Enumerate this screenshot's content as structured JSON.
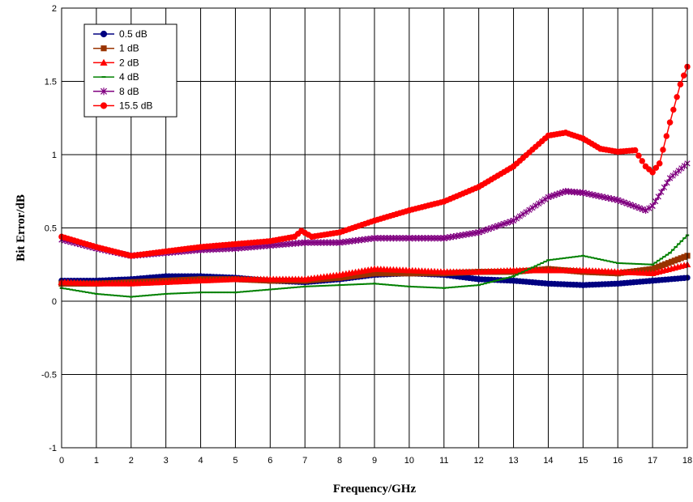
{
  "chart_data": {
    "type": "line",
    "title": "",
    "xlabel": "Frequency/GHz",
    "ylabel": "Bit Error/dB",
    "xlim": [
      0,
      18
    ],
    "ylim": [
      -1,
      2
    ],
    "xticks": [
      0,
      1,
      2,
      3,
      4,
      5,
      6,
      7,
      8,
      9,
      10,
      11,
      12,
      13,
      14,
      15,
      16,
      17,
      18
    ],
    "yticks": [
      -1,
      -0.5,
      0,
      0.5,
      1,
      1.5,
      2
    ],
    "ytick_labels": [
      "-1",
      "-0.5",
      "0",
      "0.5",
      "1",
      "1.5",
      "2"
    ],
    "grid": true,
    "legend_position": "top-left",
    "series": [
      {
        "name": "0.5 dB",
        "color": "#000080",
        "marker": "circle",
        "points": [
          [
            0,
            0.14
          ],
          [
            1,
            0.14
          ],
          [
            2,
            0.15
          ],
          [
            3,
            0.17
          ],
          [
            4,
            0.17
          ],
          [
            5,
            0.16
          ],
          [
            6,
            0.14
          ],
          [
            7,
            0.13
          ],
          [
            8,
            0.15
          ],
          [
            9,
            0.18
          ],
          [
            10,
            0.19
          ],
          [
            11,
            0.18
          ],
          [
            12,
            0.15
          ],
          [
            13,
            0.14
          ],
          [
            14,
            0.12
          ],
          [
            15,
            0.11
          ],
          [
            16,
            0.12
          ],
          [
            17,
            0.14
          ],
          [
            18,
            0.16
          ]
        ]
      },
      {
        "name": "1 dB",
        "color": "#993300",
        "marker": "square",
        "points": [
          [
            0,
            0.12
          ],
          [
            1,
            0.12
          ],
          [
            2,
            0.13
          ],
          [
            3,
            0.14
          ],
          [
            4,
            0.15
          ],
          [
            5,
            0.15
          ],
          [
            6,
            0.14
          ],
          [
            7,
            0.14
          ],
          [
            8,
            0.16
          ],
          [
            9,
            0.19
          ],
          [
            10,
            0.19
          ],
          [
            11,
            0.19
          ],
          [
            12,
            0.2
          ],
          [
            13,
            0.2
          ],
          [
            14,
            0.22
          ],
          [
            15,
            0.2
          ],
          [
            16,
            0.19
          ],
          [
            17,
            0.22
          ],
          [
            18,
            0.31
          ]
        ]
      },
      {
        "name": "2 dB",
        "color": "#ff0000",
        "marker": "triangle",
        "points": [
          [
            0,
            0.13
          ],
          [
            1,
            0.12
          ],
          [
            2,
            0.12
          ],
          [
            3,
            0.13
          ],
          [
            4,
            0.14
          ],
          [
            5,
            0.15
          ],
          [
            6,
            0.15
          ],
          [
            7,
            0.15
          ],
          [
            8,
            0.18
          ],
          [
            9,
            0.22
          ],
          [
            10,
            0.21
          ],
          [
            11,
            0.2
          ],
          [
            12,
            0.2
          ],
          [
            13,
            0.21
          ],
          [
            14,
            0.21
          ],
          [
            15,
            0.21
          ],
          [
            16,
            0.2
          ],
          [
            17,
            0.19
          ],
          [
            18,
            0.25
          ]
        ]
      },
      {
        "name": "4 dB",
        "color": "#008000",
        "marker": "dash",
        "points": [
          [
            0,
            0.09
          ],
          [
            1,
            0.05
          ],
          [
            2,
            0.03
          ],
          [
            3,
            0.05
          ],
          [
            4,
            0.06
          ],
          [
            5,
            0.06
          ],
          [
            6,
            0.08
          ],
          [
            7,
            0.1
          ],
          [
            8,
            0.11
          ],
          [
            9,
            0.12
          ],
          [
            10,
            0.1
          ],
          [
            11,
            0.09
          ],
          [
            12,
            0.11
          ],
          [
            13,
            0.17
          ],
          [
            14,
            0.28
          ],
          [
            15,
            0.31
          ],
          [
            16,
            0.26
          ],
          [
            17,
            0.25
          ],
          [
            17.5,
            0.33
          ],
          [
            18,
            0.45
          ]
        ]
      },
      {
        "name": "8 dB",
        "color": "#800080",
        "marker": "star",
        "points": [
          [
            0,
            0.42
          ],
          [
            1,
            0.36
          ],
          [
            2,
            0.31
          ],
          [
            3,
            0.33
          ],
          [
            4,
            0.35
          ],
          [
            5,
            0.36
          ],
          [
            6,
            0.38
          ],
          [
            7,
            0.4
          ],
          [
            8,
            0.4
          ],
          [
            9,
            0.43
          ],
          [
            10,
            0.43
          ],
          [
            11,
            0.43
          ],
          [
            12,
            0.47
          ],
          [
            13,
            0.55
          ],
          [
            14,
            0.71
          ],
          [
            14.5,
            0.75
          ],
          [
            15,
            0.74
          ],
          [
            16,
            0.69
          ],
          [
            16.8,
            0.62
          ],
          [
            17,
            0.65
          ],
          [
            17.5,
            0.84
          ],
          [
            18,
            0.94
          ]
        ]
      },
      {
        "name": "15.5 dB",
        "color": "#ff0000",
        "marker": "circle",
        "points": [
          [
            0,
            0.44
          ],
          [
            1,
            0.37
          ],
          [
            2,
            0.31
          ],
          [
            3,
            0.34
          ],
          [
            4,
            0.37
          ],
          [
            5,
            0.39
          ],
          [
            6,
            0.41
          ],
          [
            6.7,
            0.44
          ],
          [
            6.9,
            0.48
          ],
          [
            7.2,
            0.44
          ],
          [
            8,
            0.47
          ],
          [
            9,
            0.55
          ],
          [
            10,
            0.62
          ],
          [
            11,
            0.68
          ],
          [
            12,
            0.78
          ],
          [
            13,
            0.92
          ],
          [
            14,
            1.13
          ],
          [
            14.5,
            1.15
          ],
          [
            15,
            1.11
          ],
          [
            15.5,
            1.04
          ],
          [
            16,
            1.02
          ],
          [
            16.5,
            1.03
          ],
          [
            16.8,
            0.92
          ],
          [
            17,
            0.88
          ],
          [
            17.2,
            0.94
          ],
          [
            17.5,
            1.22
          ],
          [
            17.8,
            1.48
          ],
          [
            18,
            1.6
          ]
        ]
      }
    ]
  }
}
